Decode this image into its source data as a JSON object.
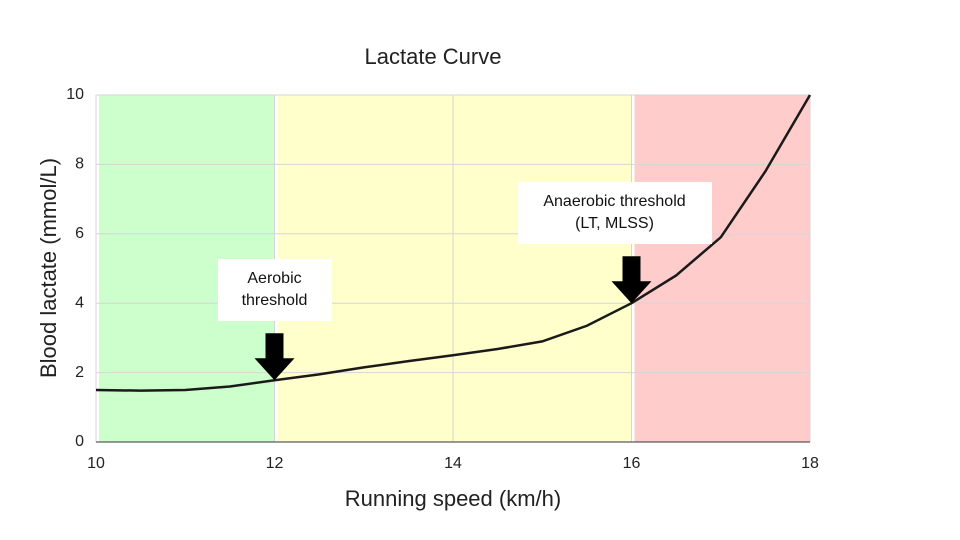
{
  "chart_data": {
    "type": "line",
    "title": "Lactate Curve",
    "x_label": "Running speed (km/h)",
    "y_label": "Blood lactate (mmol/L)",
    "x": [
      10,
      10.5,
      11,
      11.5,
      12,
      12.5,
      13,
      13.5,
      14,
      14.5,
      15,
      15.5,
      16,
      16.5,
      17,
      17.5,
      18
    ],
    "series": [
      {
        "name": "Blood lactate",
        "color": "#1a1a1a",
        "values": [
          1.5,
          1.48,
          1.5,
          1.6,
          1.78,
          1.95,
          2.15,
          2.33,
          2.5,
          2.68,
          2.9,
          3.35,
          4.0,
          4.8,
          5.9,
          7.8,
          10
        ]
      }
    ],
    "xlim": [
      10,
      18
    ],
    "xticks": [
      10,
      12,
      14,
      16,
      18
    ],
    "ylim": [
      0,
      10
    ],
    "yticks": [
      0,
      2,
      4,
      6,
      8,
      10
    ],
    "grid": true,
    "zones": [
      {
        "from": 10,
        "to": 12,
        "color": "#ccffcc"
      },
      {
        "from": 12,
        "to": 16,
        "color": "#ffffcc"
      },
      {
        "from": 16,
        "to": 18,
        "color": "#ffcccc"
      }
    ],
    "annotations": [
      {
        "text": "Aerobic threshold",
        "x": 12,
        "y": 1.78
      },
      {
        "text": "Anaerobic threshold (LT, MLSS)",
        "x": 16,
        "y": 4.0
      }
    ]
  }
}
